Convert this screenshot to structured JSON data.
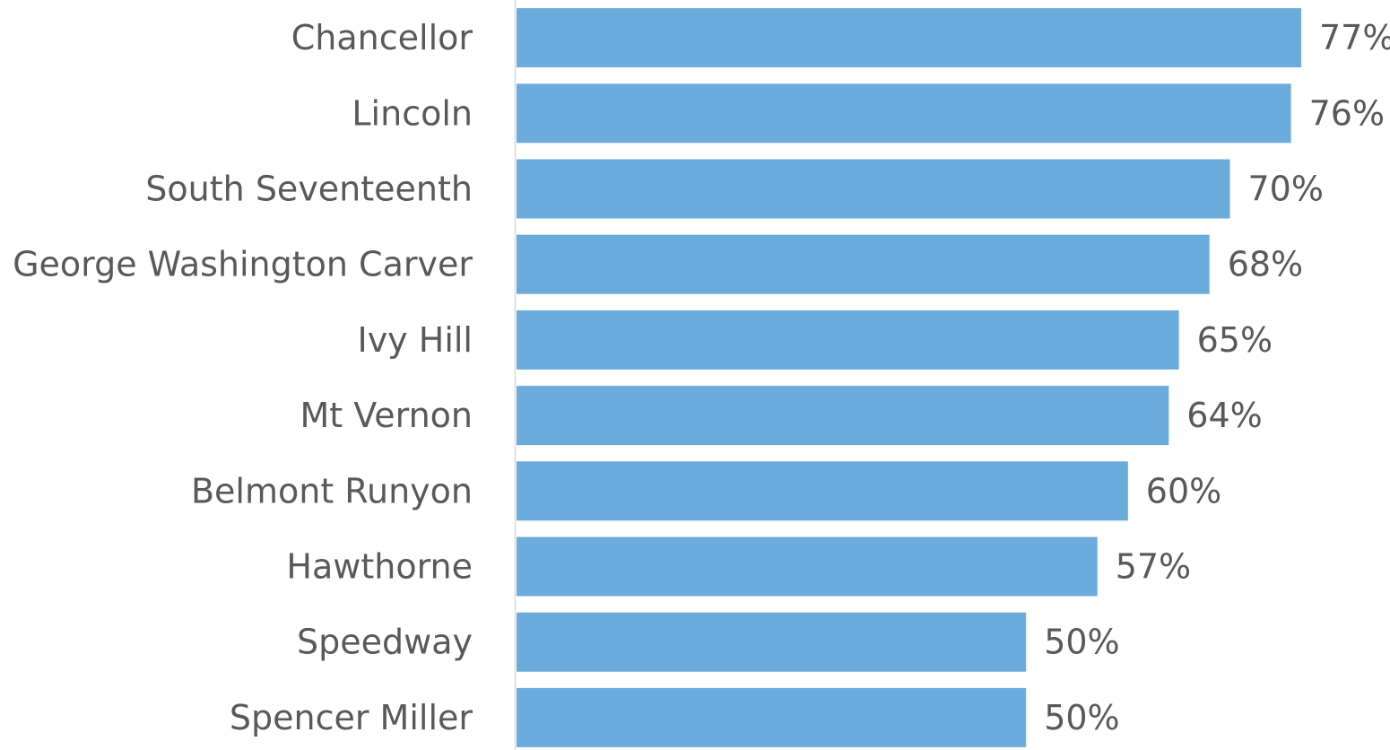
{
  "chart_data": {
    "type": "bar",
    "orientation": "horizontal",
    "title": "",
    "xlabel": "",
    "ylabel": "",
    "categories": [
      "Chancellor",
      "Lincoln",
      "South Seventeenth",
      "George Washington Carver",
      "Ivy Hill",
      "Mt Vernon",
      "Belmont Runyon",
      "Hawthorne",
      "Speedway",
      "Spencer Miller"
    ],
    "values": [
      77,
      76,
      70,
      68,
      65,
      64,
      60,
      57,
      50,
      50
    ],
    "data_labels": [
      "77%",
      "76%",
      "70%",
      "68%",
      "65%",
      "64%",
      "60%",
      "57%",
      "50%",
      "50%"
    ],
    "value_unit": "%",
    "xlim": [
      0,
      77
    ],
    "grid": false,
    "legend": "none",
    "bar_color": "#6CACDC",
    "axis_color": "#D9D9D9",
    "text_color": "#595959"
  }
}
